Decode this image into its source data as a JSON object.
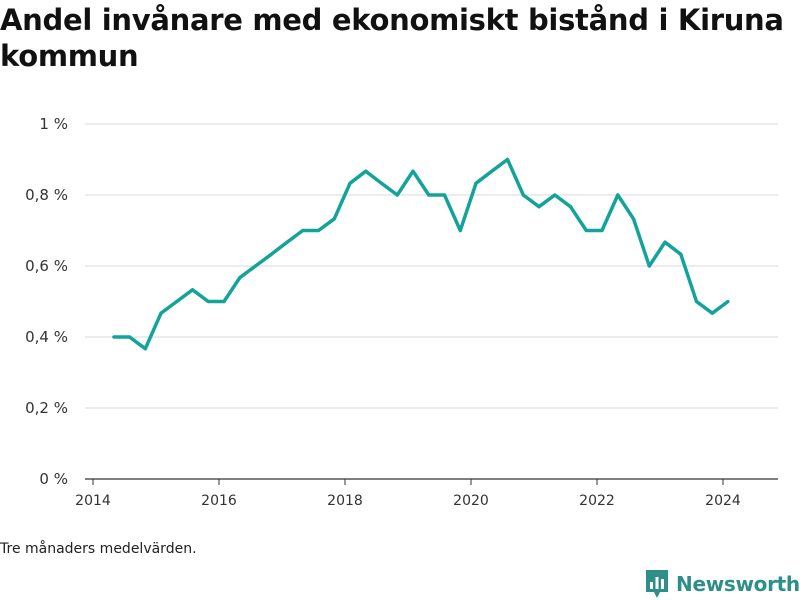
{
  "title": "Andel invånare med ekonomiskt bistånd i Kiruna kommun",
  "note": "Tre månaders medelvärden.",
  "brand": {
    "name": "Newsworthy",
    "icon": "newsworthy-logo-icon",
    "color": "#2e8f88"
  },
  "chart_data": {
    "type": "line",
    "title": "Andel invånare med ekonomiskt bistånd i Kiruna kommun",
    "xlabel": "",
    "ylabel": "",
    "xlim": [
      2014.0,
      2025.0
    ],
    "ylim": [
      0,
      1
    ],
    "y_ticks": [
      {
        "value": 0,
        "label": "0 %"
      },
      {
        "value": 0.2,
        "label": "0,2 %"
      },
      {
        "value": 0.4,
        "label": "0,4 %"
      },
      {
        "value": 0.6,
        "label": "0,6 %"
      },
      {
        "value": 0.8,
        "label": "0,8 %"
      },
      {
        "value": 1,
        "label": "1 %"
      }
    ],
    "x_ticks": [
      {
        "value": 2014,
        "label": "2014"
      },
      {
        "value": 2016,
        "label": "2016"
      },
      {
        "value": 2018,
        "label": "2018"
      },
      {
        "value": 2020,
        "label": "2020"
      },
      {
        "value": 2022,
        "label": "2022"
      },
      {
        "value": 2024,
        "label": "2024"
      }
    ],
    "grid": "horizontal",
    "line_color": "#14a39a",
    "series": [
      {
        "x": [
          2014.33,
          2014.58,
          2014.83,
          2015.08,
          2015.33,
          2015.58,
          2015.83,
          2016.08,
          2016.33,
          2016.58,
          2016.83,
          2017.08,
          2017.33,
          2017.58,
          2017.83,
          2018.08,
          2018.33,
          2018.58,
          2018.83,
          2019.08,
          2019.33,
          2019.58,
          2019.83,
          2020.08,
          2020.33,
          2020.58,
          2020.83,
          2021.08,
          2021.33,
          2021.58,
          2021.83,
          2022.08,
          2022.33,
          2022.58,
          2022.83,
          2023.08,
          2023.33,
          2023.58,
          2023.83,
          2024.08
        ],
        "y": [
          0.4,
          0.4,
          0.367,
          0.467,
          0.5,
          0.533,
          0.5,
          0.5,
          0.567,
          0.6,
          0.633,
          0.667,
          0.7,
          0.7,
          0.733,
          0.833,
          0.867,
          0.833,
          0.8,
          0.867,
          0.8,
          0.8,
          0.7,
          0.833,
          0.867,
          0.9,
          0.8,
          0.767,
          0.8,
          0.767,
          0.7,
          0.7,
          0.8,
          0.733,
          0.6,
          0.667,
          0.633,
          0.5,
          0.467,
          0.5
        ]
      }
    ]
  }
}
